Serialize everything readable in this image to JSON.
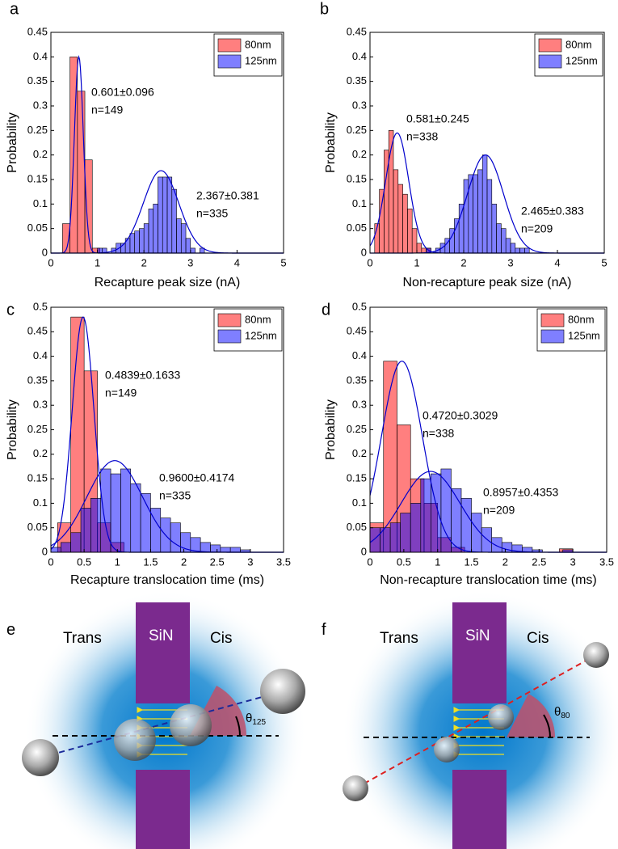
{
  "chart_data": [
    {
      "type": "histogram",
      "panel": "a",
      "xlabel": "Recapture peak size (nA)",
      "ylabel": "Probability",
      "xlim": [
        0,
        5
      ],
      "ylim": [
        0,
        0.45
      ],
      "xticks": [
        0,
        1,
        2,
        3,
        4,
        5
      ],
      "yticks": [
        0,
        0.05,
        0.1,
        0.15,
        0.2,
        0.25,
        0.3,
        0.35,
        0.4,
        0.45
      ],
      "legend": "upper right",
      "alpha": 0.5,
      "series": [
        {
          "name": "80nm",
          "color": "#ff0000",
          "bins": [
            0.25,
            0.41,
            0.57,
            0.73,
            0.89,
            1.05
          ],
          "values": [
            0.06,
            0.4,
            0.33,
            0.19,
            0.01
          ]
        },
        {
          "name": "125nm",
          "color": "#0000ff",
          "bins": [
            1.0,
            1.1,
            1.2,
            1.3,
            1.4,
            1.5,
            1.6,
            1.7,
            1.8,
            1.9,
            2.0,
            2.1,
            2.2,
            2.3,
            2.4,
            2.5,
            2.6,
            2.7,
            2.8,
            2.9,
            3.0,
            3.1,
            3.2,
            3.3
          ],
          "values": [
            0.01,
            0.01,
            0.0,
            0.01,
            0.02,
            0.02,
            0.03,
            0.04,
            0.045,
            0.05,
            0.06,
            0.09,
            0.1,
            0.155,
            0.155,
            0.155,
            0.13,
            0.07,
            0.06,
            0.03,
            0.01,
            0.0,
            0.01
          ]
        }
      ],
      "fits": [
        {
          "color": "#0000cc",
          "mean": 0.601,
          "sd": 0.096,
          "peak": 0.4
        },
        {
          "color": "#0000cc",
          "mean": 2.367,
          "sd": 0.381,
          "peak": 0.168
        }
      ],
      "annotations": [
        "0.601±0.096",
        "n=149",
        "2.367±0.381",
        "n=335"
      ]
    },
    {
      "type": "histogram",
      "panel": "b",
      "xlabel": "Non-recapture peak size (nA)",
      "ylabel": "Probability",
      "xlim": [
        0,
        5
      ],
      "ylim": [
        0,
        0.45
      ],
      "xticks": [
        0,
        1,
        2,
        3,
        4,
        5
      ],
      "yticks": [
        0,
        0.05,
        0.1,
        0.15,
        0.2,
        0.25,
        0.3,
        0.35,
        0.4,
        0.45
      ],
      "legend": "upper right",
      "alpha": 0.5,
      "series": [
        {
          "name": "80nm",
          "color": "#ff0000",
          "bins": [
            0.1,
            0.2,
            0.3,
            0.4,
            0.5,
            0.6,
            0.7,
            0.8,
            0.9,
            1.0,
            1.1,
            1.2,
            1.3
          ],
          "values": [
            0.06,
            0.13,
            0.21,
            0.25,
            0.17,
            0.14,
            0.12,
            0.09,
            0.05,
            0.02,
            0.01,
            0.01
          ]
        },
        {
          "name": "125nm",
          "color": "#0000ff",
          "bins": [
            1.2,
            1.3,
            1.4,
            1.5,
            1.6,
            1.7,
            1.8,
            1.9,
            2.0,
            2.1,
            2.2,
            2.3,
            2.4,
            2.5,
            2.6,
            2.7,
            2.8,
            2.9,
            3.0,
            3.1,
            3.2,
            3.3,
            3.4
          ],
          "values": [
            0.01,
            0.0,
            0.01,
            0.02,
            0.03,
            0.05,
            0.07,
            0.1,
            0.15,
            0.16,
            0.16,
            0.17,
            0.2,
            0.15,
            0.1,
            0.06,
            0.05,
            0.03,
            0.02,
            0.01,
            0.01,
            0.01
          ]
        }
      ],
      "fits": [
        {
          "color": "#0000cc",
          "mean": 0.581,
          "sd": 0.245,
          "peak": 0.245
        },
        {
          "color": "#0000cc",
          "mean": 2.465,
          "sd": 0.383,
          "peak": 0.2
        }
      ],
      "annotations": [
        "0.581±0.245",
        "n=338",
        "2.465±0.383",
        "n=209"
      ]
    },
    {
      "type": "histogram",
      "panel": "c",
      "xlabel": "Recapture translocation time (ms)",
      "ylabel": "Probability",
      "xlim": [
        0,
        3.5
      ],
      "ylim": [
        0,
        0.5
      ],
      "xticks": [
        0,
        0.5,
        1,
        1.5,
        2,
        2.5,
        3,
        3.5
      ],
      "yticks": [
        0,
        0.05,
        0.1,
        0.15,
        0.2,
        0.25,
        0.3,
        0.35,
        0.4,
        0.45,
        0.5
      ],
      "legend": "upper right",
      "alpha": 0.5,
      "series": [
        {
          "name": "80nm",
          "color": "#ff0000",
          "bins": [
            0.1,
            0.3,
            0.5,
            0.7,
            0.9,
            1.1
          ],
          "values": [
            0.06,
            0.48,
            0.37,
            0.06,
            0.02
          ]
        },
        {
          "name": "125nm",
          "color": "#0000ff",
          "bins": [
            0,
            0.15,
            0.3,
            0.45,
            0.6,
            0.75,
            0.9,
            1.05,
            1.2,
            1.35,
            1.5,
            1.65,
            1.8,
            1.95,
            2.1,
            2.25,
            2.4,
            2.55,
            2.7,
            2.85,
            3.0
          ],
          "values": [
            0.01,
            0.02,
            0.04,
            0.09,
            0.11,
            0.17,
            0.16,
            0.17,
            0.14,
            0.12,
            0.09,
            0.07,
            0.06,
            0.04,
            0.03,
            0.02,
            0.015,
            0.01,
            0.01,
            0.005
          ]
        }
      ],
      "fits": [
        {
          "color": "#0000cc",
          "mean": 0.4839,
          "sd": 0.1633,
          "peak": 0.48
        },
        {
          "color": "#0000cc",
          "mean": 0.96,
          "sd": 0.4174,
          "peak": 0.187
        }
      ],
      "annotations": [
        "0.4839±0.1633",
        "n=149",
        "0.9600±0.4174",
        "n=335"
      ]
    },
    {
      "type": "histogram",
      "panel": "d",
      "xlabel": "Non-recapture translocation time (ms)",
      "ylabel": "Probability",
      "xlim": [
        0,
        3.5
      ],
      "ylim": [
        0,
        0.5
      ],
      "xticks": [
        0,
        0.5,
        1,
        1.5,
        2,
        2.5,
        3,
        3.5
      ],
      "yticks": [
        0,
        0.05,
        0.1,
        0.15,
        0.2,
        0.25,
        0.3,
        0.35,
        0.4,
        0.45,
        0.5
      ],
      "legend": "upper right",
      "alpha": 0.5,
      "series": [
        {
          "name": "80nm",
          "color": "#ff0000",
          "bins": [
            0,
            0.2,
            0.4,
            0.6,
            0.8,
            1.0,
            1.2,
            1.4,
            1.6,
            1.8,
            2.0,
            2.2,
            2.4,
            2.6,
            2.8,
            3.0
          ],
          "values": [
            0.06,
            0.39,
            0.26,
            0.15,
            0.1,
            0.03,
            0.01,
            0,
            0,
            0,
            0,
            0,
            0,
            0,
            0.007
          ]
        },
        {
          "name": "125nm",
          "color": "#0000ff",
          "bins": [
            0,
            0.15,
            0.3,
            0.45,
            0.6,
            0.75,
            0.9,
            1.05,
            1.2,
            1.35,
            1.5,
            1.65,
            1.8,
            1.95,
            2.1,
            2.25,
            2.4,
            2.55,
            2.7,
            2.85,
            3.0
          ],
          "values": [
            0.05,
            0.05,
            0.06,
            0.08,
            0.1,
            0.15,
            0.16,
            0.17,
            0.13,
            0.11,
            0.08,
            0.05,
            0.03,
            0.02,
            0.015,
            0.01,
            0.005,
            0,
            0,
            0.005
          ]
        }
      ],
      "fits": [
        {
          "color": "#0000cc",
          "mean": 0.472,
          "sd": 0.3029,
          "peak": 0.39
        },
        {
          "color": "#0000cc",
          "mean": 0.8957,
          "sd": 0.4353,
          "peak": 0.165
        }
      ],
      "annotations": [
        "0.4720±0.3029",
        "n=338",
        "0.8957±0.4353",
        "n=209"
      ]
    }
  ],
  "diagrams": [
    {
      "panel": "e",
      "left_label": "Trans",
      "membrane_label": "SiN",
      "right_label": "Cis",
      "angle_symbol": "θ",
      "angle_subscript": "125"
    },
    {
      "panel": "f",
      "left_label": "Trans",
      "membrane_label": "SiN",
      "right_label": "Cis",
      "angle_symbol": "θ",
      "angle_subscript": "80"
    }
  ]
}
